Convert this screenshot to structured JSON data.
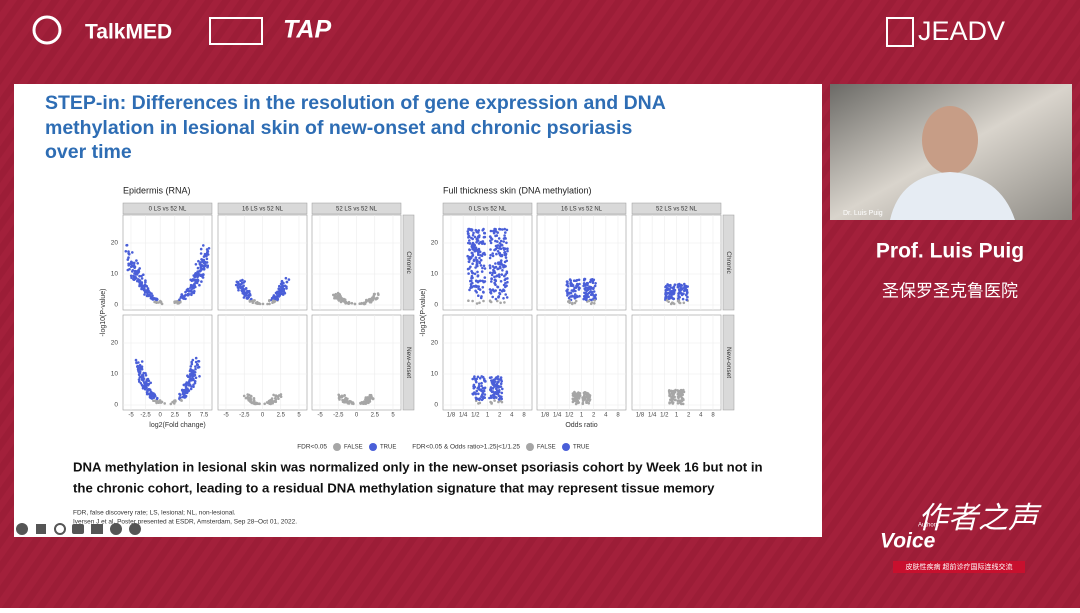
{
  "header": {
    "logos": [
      "TalkMED",
      "TAP",
      "JEADV"
    ]
  },
  "slide": {
    "title": [
      "STEP-in: Differences in the resolution of gene expression and DNA",
      "methylation in lesional skin of new-onset and chronic psoriasis",
      "over time"
    ],
    "figures": [
      {
        "title": "Epidermis (RNA)",
        "y_label": "-log10(P-value)",
        "y_ticks": [
          "0",
          "10",
          "20"
        ],
        "columns": [
          {
            "header": "0 LS vs 52 NL",
            "x_ticks": [
              "-5",
              "-2.5",
              "0",
              "2.5",
              "5",
              "7.5"
            ]
          },
          {
            "header": "16 LS vs 52 NL",
            "x_ticks": [
              "-5",
              "-2.5",
              "0",
              "2.5",
              "5"
            ]
          },
          {
            "header": "52 LS vs 52 NL",
            "x_ticks": [
              "-5",
              "-2.5",
              "0",
              "2.5",
              "5"
            ]
          }
        ],
        "rows": [
          "Chronic",
          "New-onset"
        ],
        "x_label": "log2(Fold change)",
        "legend": {
          "title": "FDR<0.05",
          "items": [
            "FALSE",
            "TRUE"
          ]
        }
      },
      {
        "title": "Full thickness skin (DNA methylation)",
        "y_label": "-log10(P-value)",
        "y_ticks": [
          "0",
          "10",
          "20"
        ],
        "columns": [
          {
            "header": "0 LS vs 52 NL",
            "x_ticks": [
              "1/8",
              "1/4",
              "1/2",
              "1",
              "2",
              "4",
              "8"
            ]
          },
          {
            "header": "16 LS vs 52 NL",
            "x_ticks": [
              "1/8",
              "1/4",
              "1/2",
              "1",
              "2",
              "4",
              "8"
            ]
          },
          {
            "header": "52 LS vs 52 NL",
            "x_ticks": [
              "1/8",
              "1/4",
              "1/2",
              "1",
              "2",
              "4",
              "8"
            ]
          }
        ],
        "rows": [
          "Chronic",
          "New-onset"
        ],
        "x_label": "Odds ratio",
        "legend": {
          "title": "FDR<0.05 & Odds ratio>1.25|<1/1.25",
          "items": [
            "FALSE",
            "TRUE"
          ]
        }
      }
    ],
    "summary": [
      "DNA methylation in lesional skin was normalized only in the new-onset psoriasis cohort by Week 16 but not in",
      "the chronic cohort, leading to a residual DNA methylation signature that may represent tissue memory"
    ],
    "footnotes": [
      "FDR, false discovery rate; LS, lesional; NL, non-lesional.",
      "Iversen J et al. Poster presented at ESDR, Amsterdam, Sep 28–Oct 01, 2022."
    ]
  },
  "speaker": {
    "video_label": "Dr. Luis Puig",
    "name": "Prof. Luis Puig",
    "affiliation": "圣保罗圣克鲁医院"
  },
  "brand": {
    "small": "Authors",
    "voice": "Voice",
    "chinese": "作者之声",
    "tagline": "皮肤性疾病 超前诊疗国际连线交流"
  }
}
